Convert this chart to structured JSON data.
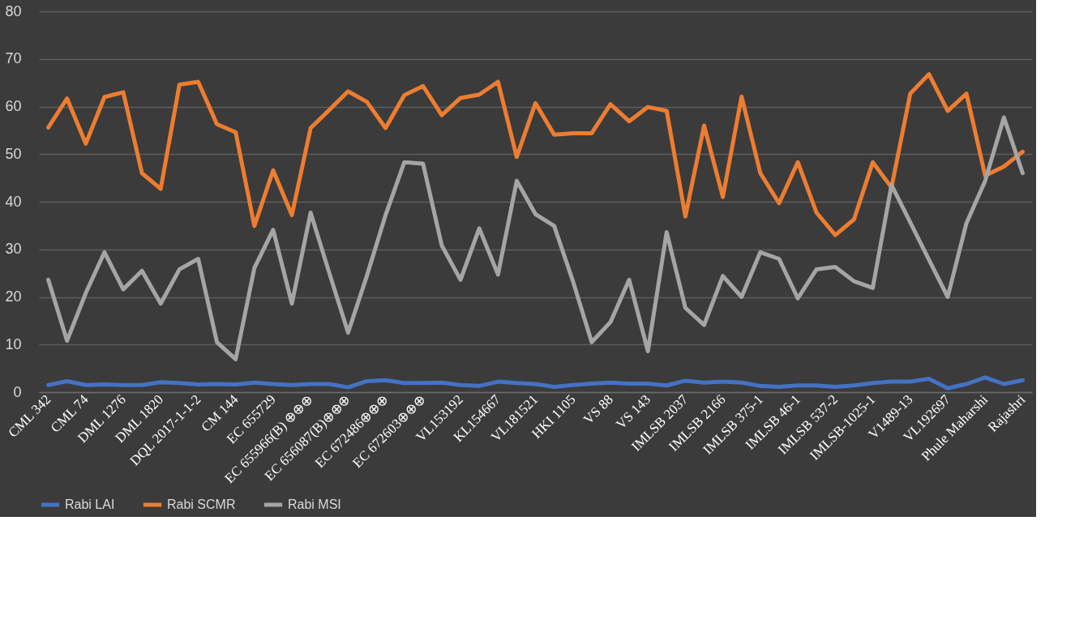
{
  "chart_data": {
    "type": "line",
    "categories": [
      "CML 342",
      null,
      "CML 74",
      null,
      "DML 1276",
      null,
      "DML 1820",
      null,
      "DQL 2017-1-1-2",
      null,
      "CM 144",
      null,
      "EC 655729",
      null,
      "EC 655966(B) ⊕⊕⊕",
      null,
      "EC 656087(B)⊕⊕⊕",
      null,
      "EC 672486⊕⊕⊕",
      null,
      "EC 672603⊕⊕⊕",
      null,
      "VL153192",
      null,
      "KL154667",
      null,
      "VL181521",
      null,
      "HKI 1105",
      null,
      "VS 88",
      null,
      "VS 143",
      null,
      "IMLSB 2037",
      null,
      "IMLSB 2166",
      null,
      "IMLSB 375-1",
      null,
      "IMLSB 46-1",
      null,
      "IMLSB 537-2",
      null,
      "IMLSB-1025-1",
      null,
      "V1489-13",
      null,
      "VL192697",
      null,
      "Phule Maharshi",
      null,
      "Rajashri"
    ],
    "series": [
      {
        "name": "Rabi LAI",
        "color": "#4472c4",
        "values": [
          1.5,
          2.3,
          1.5,
          1.6,
          1.5,
          1.5,
          2.1,
          1.9,
          1.6,
          1.7,
          1.6,
          2.0,
          1.7,
          1.5,
          1.7,
          1.7,
          1.0,
          2.3,
          2.5,
          1.9,
          1.9,
          2.0,
          1.5,
          1.3,
          2.2,
          1.9,
          1.7,
          1.1,
          1.5,
          1.8,
          2.0,
          1.8,
          1.8,
          1.4,
          2.4,
          2.0,
          2.2,
          2.0,
          1.3,
          1.1,
          1.4,
          1.4,
          1.1,
          1.4,
          1.9,
          2.2,
          2.2,
          2.8,
          0.8,
          1.7,
          3.1,
          1.7,
          2.5
        ]
      },
      {
        "name": "Rabi SCMR",
        "color": "#ed7d31",
        "values": [
          55.6,
          61.7,
          52.2,
          62,
          63,
          46,
          42.7,
          64.6,
          65.2,
          56.3,
          54.6,
          34.9,
          46.6,
          37.2,
          55.5,
          59.3,
          63.2,
          61,
          55.5,
          62.4,
          64.3,
          58.2,
          61.8,
          62.5,
          65.2,
          49.4,
          60.7,
          54.1,
          54.4,
          54.4,
          60.5,
          56.9,
          59.9,
          59.1,
          36.9,
          56,
          41,
          62.1,
          46,
          39.7,
          48.3,
          37.7,
          33,
          36.3,
          48.3,
          43,
          62.7,
          66.8,
          59.1,
          62.7,
          45.5,
          47.4,
          50.5
        ]
      },
      {
        "name": "Rabi MSI",
        "color": "#a5a5a5",
        "values": [
          23.6,
          10.8,
          20.8,
          29.4,
          21.6,
          25.5,
          18.6,
          25.8,
          28,
          10.5,
          6.9,
          26.1,
          34.1,
          18.6,
          37.7,
          25,
          12.5,
          24.4,
          37.2,
          48.3,
          48,
          30.8,
          23.6,
          34.4,
          24.7,
          44.4,
          37.4,
          34.9,
          23.3,
          10.5,
          14.7,
          23.6,
          8.6,
          33.6,
          17.7,
          14.1,
          24.4,
          20,
          29.4,
          28,
          19.7,
          25.8,
          26.3,
          23.3,
          21.9,
          43.5,
          35.7,
          27.8,
          20,
          35.5,
          44.4,
          57.7,
          46
        ]
      }
    ],
    "ylim": [
      0,
      80
    ],
    "yticks": [
      0,
      10,
      20,
      30,
      40,
      50,
      60,
      70,
      80
    ],
    "grid": "y",
    "legend": "bottom",
    "line_style": "solid"
  }
}
